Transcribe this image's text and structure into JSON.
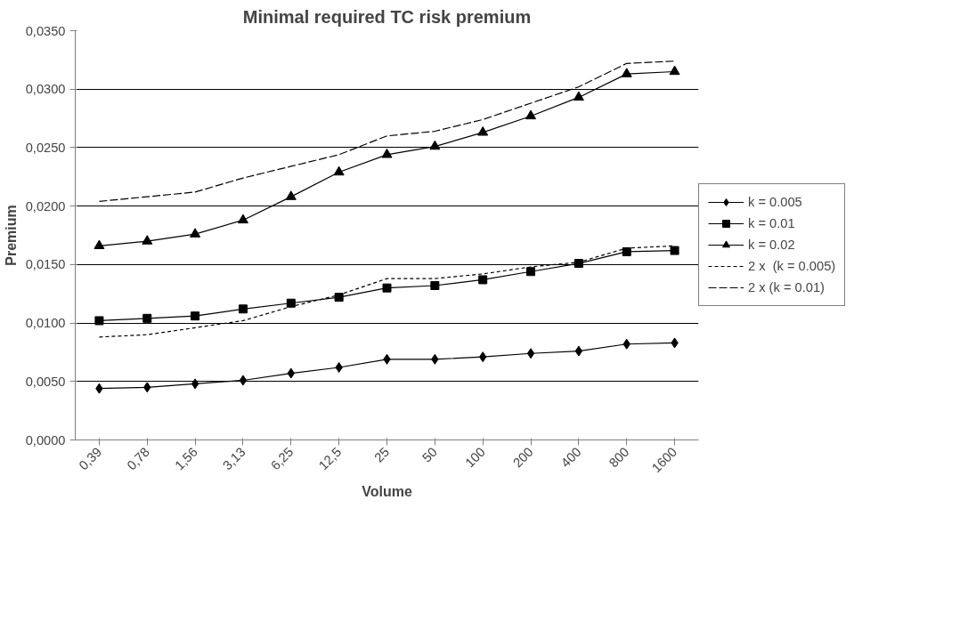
{
  "chart_data": {
    "type": "line",
    "title": "Minimal required TC risk premium",
    "xlabel": "Volume",
    "ylabel": "Premium",
    "categories": [
      "0,39",
      "0,78",
      "1,56",
      "3,13",
      "6,25",
      "12,5",
      "25",
      "50",
      "100",
      "200",
      "400",
      "800",
      "1600"
    ],
    "series": [
      {
        "name": "k = 0.005",
        "color": "#000000",
        "marker": "diamond",
        "line_style": "solid",
        "values": [
          0.0044,
          0.0045,
          0.0048,
          0.0051,
          0.0057,
          0.0062,
          0.0069,
          0.0069,
          0.0071,
          0.0074,
          0.0076,
          0.0082,
          0.0083
        ]
      },
      {
        "name": "k = 0.01",
        "color": "#000000",
        "marker": "square",
        "line_style": "solid",
        "values": [
          0.0102,
          0.0104,
          0.0106,
          0.0112,
          0.0117,
          0.0122,
          0.013,
          0.0132,
          0.0137,
          0.0144,
          0.0151,
          0.0161,
          0.0162
        ]
      },
      {
        "name": "k = 0.02",
        "color": "#000000",
        "marker": "triangle",
        "line_style": "solid",
        "values": [
          0.0166,
          0.017,
          0.0176,
          0.0188,
          0.0208,
          0.0229,
          0.0244,
          0.0251,
          0.0263,
          0.0277,
          0.0293,
          0.0313,
          0.0315
        ]
      },
      {
        "name": "2 x  (k = 0.005)",
        "color": "#000000",
        "marker": "none",
        "line_style": "dashed",
        "values": [
          0.0088,
          0.009,
          0.0096,
          0.0102,
          0.0114,
          0.0124,
          0.0138,
          0.0138,
          0.0142,
          0.0148,
          0.0152,
          0.0164,
          0.0166
        ]
      },
      {
        "name": "2 x (k = 0.01)",
        "color": "#000000",
        "marker": "none",
        "line_style": "longdash",
        "values": [
          0.0204,
          0.0208,
          0.0212,
          0.0224,
          0.0234,
          0.0244,
          0.026,
          0.0264,
          0.0274,
          0.0288,
          0.0302,
          0.0322,
          0.0324
        ]
      }
    ],
    "ylim": [
      0,
      0.035
    ],
    "yticks": [
      {
        "value": 0,
        "label": "0,0000"
      },
      {
        "value": 0.005,
        "label": "0,0050"
      },
      {
        "value": 0.01,
        "label": "0,0100"
      },
      {
        "value": 0.015,
        "label": "0,0150"
      },
      {
        "value": 0.02,
        "label": "0,0200"
      },
      {
        "value": 0.025,
        "label": "0,0250"
      },
      {
        "value": 0.03,
        "label": "0,0300"
      },
      {
        "value": 0.035,
        "label": "0,0350"
      }
    ],
    "grid": "y",
    "legend": "right"
  }
}
